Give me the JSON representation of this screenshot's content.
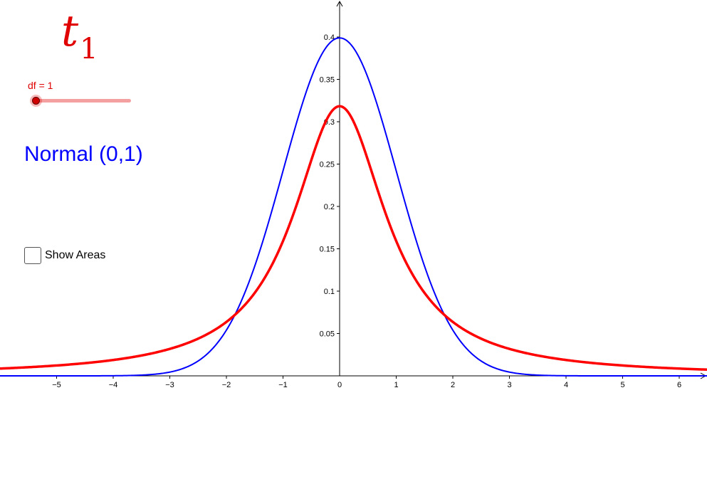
{
  "title": {
    "main": "t",
    "subscript": "1"
  },
  "slider": {
    "label": "df = 1",
    "value": 1
  },
  "normal_label": "Normal (0,1)",
  "checkbox": {
    "label": "Show Areas",
    "checked": false
  },
  "colors": {
    "t_curve": "#ff0000",
    "normal_curve": "#0000ff",
    "axes": "#000000"
  },
  "chart_data": {
    "type": "line",
    "x_ticks": [
      "−5",
      "−4",
      "−3",
      "−2",
      "−1",
      "0",
      "1",
      "2",
      "3",
      "4",
      "5",
      "6"
    ],
    "y_ticks": [
      "0.05",
      "0.1",
      "0.15",
      "0.2",
      "0.25",
      "0.3",
      "0.35",
      "0.4"
    ],
    "xlim": [
      -6,
      6.5
    ],
    "ylim": [
      0,
      0.44
    ],
    "grid": false,
    "series": [
      {
        "name": "Normal (0,1)",
        "function": "standard normal pdf",
        "color": "#0000ff"
      },
      {
        "name": "t1",
        "function": "student t pdf",
        "df": 1,
        "color": "#ff0000"
      }
    ]
  }
}
